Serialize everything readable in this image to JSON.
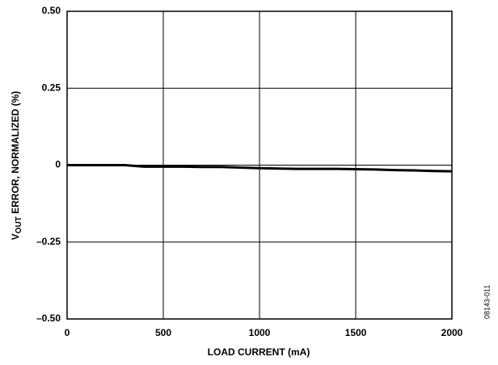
{
  "chart_data": {
    "type": "line",
    "x_label": "LOAD CURRENT (mA)",
    "y_label": {
      "main": "V",
      "sub": "OUT",
      "rest": " ERROR, NORMALIZED (%)"
    },
    "figure_id": "08143-011",
    "x": [
      0,
      100,
      200,
      300,
      400,
      500,
      600,
      700,
      800,
      900,
      1000,
      1100,
      1200,
      1300,
      1400,
      1500,
      1600,
      1700,
      1800,
      1900,
      2000
    ],
    "series": [
      {
        "name": null,
        "color": "#000000",
        "values": [
          0,
          0,
          0,
          0,
          -0.005,
          -0.005,
          -0.005,
          -0.006,
          -0.006,
          -0.008,
          -0.01,
          -0.011,
          -0.012,
          -0.012,
          -0.012,
          -0.013,
          -0.014,
          -0.016,
          -0.017,
          -0.019,
          -0.02
        ]
      }
    ],
    "xlim": [
      0,
      2000
    ],
    "xticks": [
      0,
      500,
      1000,
      1500,
      2000
    ],
    "ylim": [
      -0.5,
      0.5
    ],
    "yticks": [
      {
        "value": -0.5,
        "label": "–0.50"
      },
      {
        "value": -0.25,
        "label": "–0.25"
      },
      0,
      0.25,
      {
        "value": 0.5,
        "label": "0.50"
      }
    ],
    "grid": true
  }
}
